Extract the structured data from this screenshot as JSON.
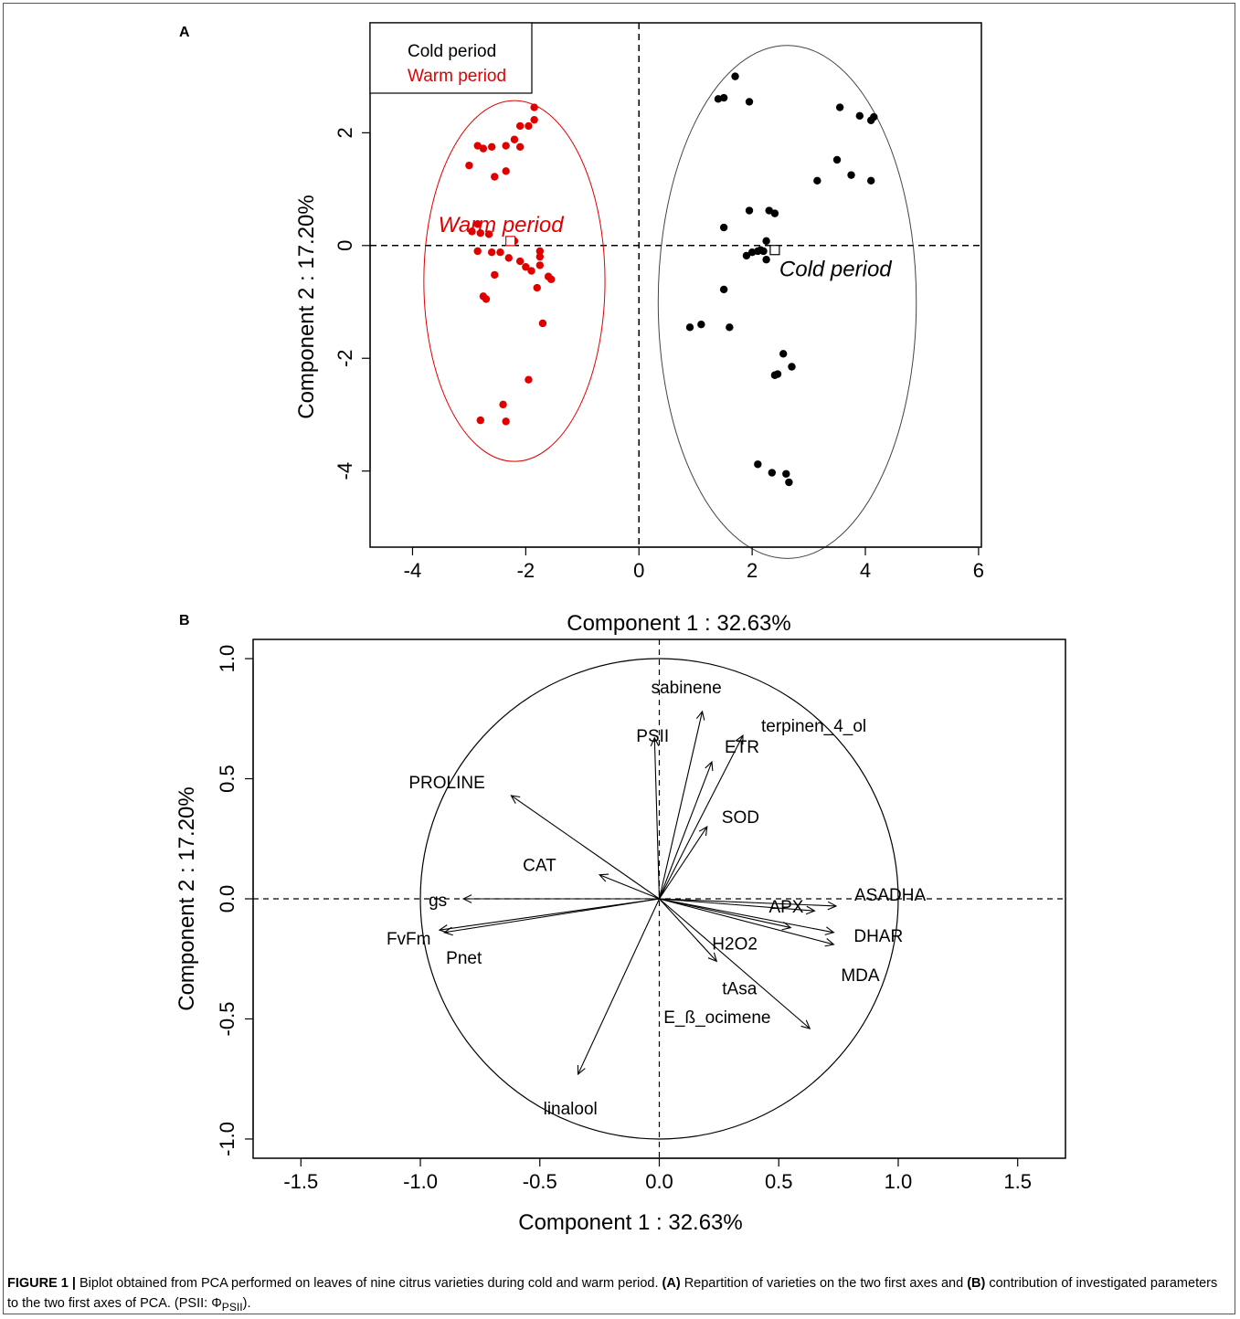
{
  "figure": {
    "caption": {
      "prefix": "FIGURE 1 |",
      "text1": " Biplot obtained from PCA performed on leaves of nine citrus varieties during cold and warm period. ",
      "a_label": "(A)",
      "text2": " Repartition of varieties on the two first axes and ",
      "b_label": "(B)",
      "text3": " contribution of investigated parameters to the two first axes of PCA. (PSII: Φ",
      "sub": "PSII",
      "text4": ")."
    }
  },
  "chart_data": [
    {
      "panel": "A",
      "type": "scatter",
      "xlabel": "Component 1 : 32.63%",
      "ylabel": "Component 2 : 17.20%",
      "xlim": [
        -4.75,
        6.05
      ],
      "ylim": [
        -5.35,
        3.95
      ],
      "xticks": [
        -4,
        -2,
        0,
        2,
        4,
        6
      ],
      "yticks": [
        -4,
        -2,
        0,
        2
      ],
      "legend": {
        "position": "top-left",
        "entries": [
          {
            "label": "Cold period",
            "color": "#000000"
          },
          {
            "label": "Warm period",
            "color": "#e00000"
          }
        ]
      },
      "series": [
        {
          "name": "Cold period",
          "color": "#000000",
          "center": [
            2.4,
            -0.08
          ],
          "ellipse": {
            "cx": 2.62,
            "cy": -1.0,
            "rx": 2.28,
            "ry": 4.55
          },
          "points": [
            [
              1.7,
              3.0
            ],
            [
              1.4,
              2.6
            ],
            [
              1.5,
              2.62
            ],
            [
              1.95,
              2.55
            ],
            [
              3.55,
              2.45
            ],
            [
              3.9,
              2.3
            ],
            [
              4.1,
              2.22
            ],
            [
              4.15,
              2.28
            ],
            [
              3.5,
              1.52
            ],
            [
              3.75,
              1.25
            ],
            [
              4.1,
              1.15
            ],
            [
              3.15,
              1.15
            ],
            [
              1.95,
              0.62
            ],
            [
              2.3,
              0.62
            ],
            [
              2.4,
              0.57
            ],
            [
              1.5,
              0.32
            ],
            [
              2.25,
              0.08
            ],
            [
              2.1,
              -0.1
            ],
            [
              2.15,
              -0.08
            ],
            [
              2.2,
              -0.1
            ],
            [
              2.0,
              -0.12
            ],
            [
              1.9,
              -0.18
            ],
            [
              2.25,
              -0.25
            ],
            [
              1.5,
              -0.78
            ],
            [
              0.9,
              -1.45
            ],
            [
              1.1,
              -1.4
            ],
            [
              1.6,
              -1.45
            ],
            [
              2.55,
              -1.92
            ],
            [
              2.7,
              -2.15
            ],
            [
              2.4,
              -2.3
            ],
            [
              2.45,
              -2.28
            ],
            [
              2.1,
              -3.88
            ],
            [
              2.35,
              -4.03
            ],
            [
              2.6,
              -4.05
            ],
            [
              2.65,
              -4.2
            ]
          ]
        },
        {
          "name": "Warm period",
          "color": "#e00000",
          "center": [
            -2.27,
            0.08
          ],
          "ellipse": {
            "cx": -2.2,
            "cy": -0.63,
            "rx": 1.6,
            "ry": 3.2
          },
          "points": [
            [
              -1.85,
              2.45
            ],
            [
              -1.85,
              2.23
            ],
            [
              -2.1,
              2.12
            ],
            [
              -1.95,
              2.12
            ],
            [
              -2.2,
              1.88
            ],
            [
              -2.35,
              1.77
            ],
            [
              -2.1,
              1.75
            ],
            [
              -2.6,
              1.75
            ],
            [
              -2.75,
              1.72
            ],
            [
              -2.85,
              1.77
            ],
            [
              -2.35,
              1.32
            ],
            [
              -2.55,
              1.22
            ],
            [
              -3.0,
              1.42
            ],
            [
              -2.85,
              0.38
            ],
            [
              -2.8,
              0.22
            ],
            [
              -2.95,
              0.25
            ],
            [
              -2.65,
              0.2
            ],
            [
              -2.2,
              0.08
            ],
            [
              -2.85,
              -0.1
            ],
            [
              -2.6,
              -0.12
            ],
            [
              -2.45,
              -0.12
            ],
            [
              -2.3,
              -0.22
            ],
            [
              -2.1,
              -0.28
            ],
            [
              -1.75,
              -0.1
            ],
            [
              -1.75,
              -0.2
            ],
            [
              -2.0,
              -0.38
            ],
            [
              -1.9,
              -0.45
            ],
            [
              -1.75,
              -0.35
            ],
            [
              -1.6,
              -0.55
            ],
            [
              -1.55,
              -0.6
            ],
            [
              -2.55,
              -0.52
            ],
            [
              -1.8,
              -0.75
            ],
            [
              -2.75,
              -0.9
            ],
            [
              -2.7,
              -0.95
            ],
            [
              -1.7,
              -1.38
            ],
            [
              -1.95,
              -2.38
            ],
            [
              -2.4,
              -2.82
            ],
            [
              -2.8,
              -3.1
            ],
            [
              -2.35,
              -3.12
            ]
          ]
        }
      ],
      "annotations": [
        {
          "text": "Warm period",
          "color": "#e00000",
          "style": "italic",
          "x": -2.27,
          "y": 0.08
        },
        {
          "text": "Cold period",
          "color": "#000000",
          "style": "italic",
          "x": 2.4,
          "y": -0.08
        }
      ]
    },
    {
      "panel": "B",
      "type": "scatter",
      "subtype": "correlation-circle",
      "xlabel": "Component 1 : 32.63%",
      "ylabel": "Component 2 : 17.20%",
      "xlim": [
        -1.7,
        1.7
      ],
      "ylim": [
        -1.08,
        1.08
      ],
      "xticks": [
        -1.5,
        -1.0,
        -0.5,
        0.0,
        0.5,
        1.0,
        1.5
      ],
      "yticks": [
        -1.0,
        -0.5,
        0.0,
        0.5,
        1.0
      ],
      "tick_format": [
        "-1.5",
        "-1.0",
        "-0.5",
        "0.0",
        "0.5",
        "1.0",
        "1.5"
      ],
      "ytick_format": [
        "-1.0",
        "-0.5",
        "0.0",
        "0.5",
        "1.0"
      ],
      "vectors": [
        {
          "name": "sabinene",
          "x": 0.18,
          "y": 0.78
        },
        {
          "name": "PSII",
          "x": -0.02,
          "y": 0.67
        },
        {
          "name": "terpinen_4_ol",
          "x": 0.35,
          "y": 0.68
        },
        {
          "name": "ETR",
          "x": 0.22,
          "y": 0.57
        },
        {
          "name": "SOD",
          "x": 0.2,
          "y": 0.3
        },
        {
          "name": "PROLINE",
          "x": -0.62,
          "y": 0.43
        },
        {
          "name": "CAT",
          "x": -0.25,
          "y": 0.1
        },
        {
          "name": "gs",
          "x": -0.82,
          "y": 0.0
        },
        {
          "name": "FvFm",
          "x": -0.92,
          "y": -0.13
        },
        {
          "name": "Pnet",
          "x": -0.9,
          "y": -0.14
        },
        {
          "name": "APX",
          "x": 0.65,
          "y": -0.05
        },
        {
          "name": "ASADHA",
          "x": 0.74,
          "y": -0.03
        },
        {
          "name": "DHAR",
          "x": 0.73,
          "y": -0.14
        },
        {
          "name": "MDA",
          "x": 0.73,
          "y": -0.19
        },
        {
          "name": "H2O2",
          "x": 0.55,
          "y": -0.12
        },
        {
          "name": "tAsa",
          "x": 0.24,
          "y": -0.26
        },
        {
          "name": "E_ß_ocimene",
          "x": 0.63,
          "y": -0.54
        },
        {
          "name": "linalool",
          "x": -0.34,
          "y": -0.73
        }
      ]
    }
  ]
}
